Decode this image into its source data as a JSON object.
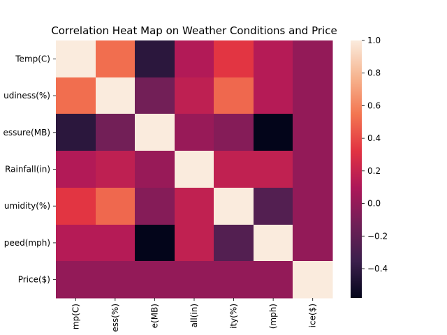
{
  "chart_data": {
    "type": "heatmap",
    "title": "Correlation Heat Map on Weather Conditions and Price",
    "xlabel": "",
    "ylabel": "",
    "row_labels": [
      "Temp(C)",
      "udiness(%)",
      "essure(MB)",
      "Rainfall(in)",
      "umidity(%)",
      "peed(mph)",
      "Price($)"
    ],
    "col_labels": [
      "mp(C)",
      "ess(%)",
      "e(MB)",
      "all(in)",
      "ity(%)",
      "(mph)",
      "ice($)"
    ],
    "values": [
      [
        1.0,
        0.52,
        -0.42,
        0.12,
        0.33,
        0.13,
        0.0
      ],
      [
        0.52,
        1.0,
        -0.12,
        0.17,
        0.5,
        0.13,
        0.0
      ],
      [
        -0.42,
        -0.12,
        1.0,
        0.02,
        -0.05,
        -0.58,
        0.0
      ],
      [
        0.12,
        0.17,
        0.02,
        1.0,
        0.18,
        0.18,
        0.0
      ],
      [
        0.33,
        0.5,
        -0.05,
        0.18,
        1.0,
        -0.25,
        0.0
      ],
      [
        0.13,
        0.13,
        -0.58,
        0.18,
        -0.25,
        1.0,
        0.0
      ],
      [
        0.0,
        0.0,
        0.0,
        0.0,
        0.0,
        0.0,
        1.0
      ]
    ],
    "colorbar": {
      "range": [
        -0.58,
        1.0
      ],
      "ticks": [
        -0.4,
        -0.2,
        0.0,
        0.2,
        0.4,
        0.6,
        0.8,
        1.0
      ],
      "tick_labels": [
        "−0.4",
        "−0.2",
        "0.0",
        "0.2",
        "0.4",
        "0.6",
        "0.8",
        "1.0"
      ],
      "colormap": "rocket",
      "colors": [
        "#03051a",
        "#3b1f4c",
        "#701f57",
        "#ad1759",
        "#e13342",
        "#f37651",
        "#f6b48f",
        "#faebdd"
      ]
    },
    "grid": false,
    "legend": "colorbar-right"
  }
}
